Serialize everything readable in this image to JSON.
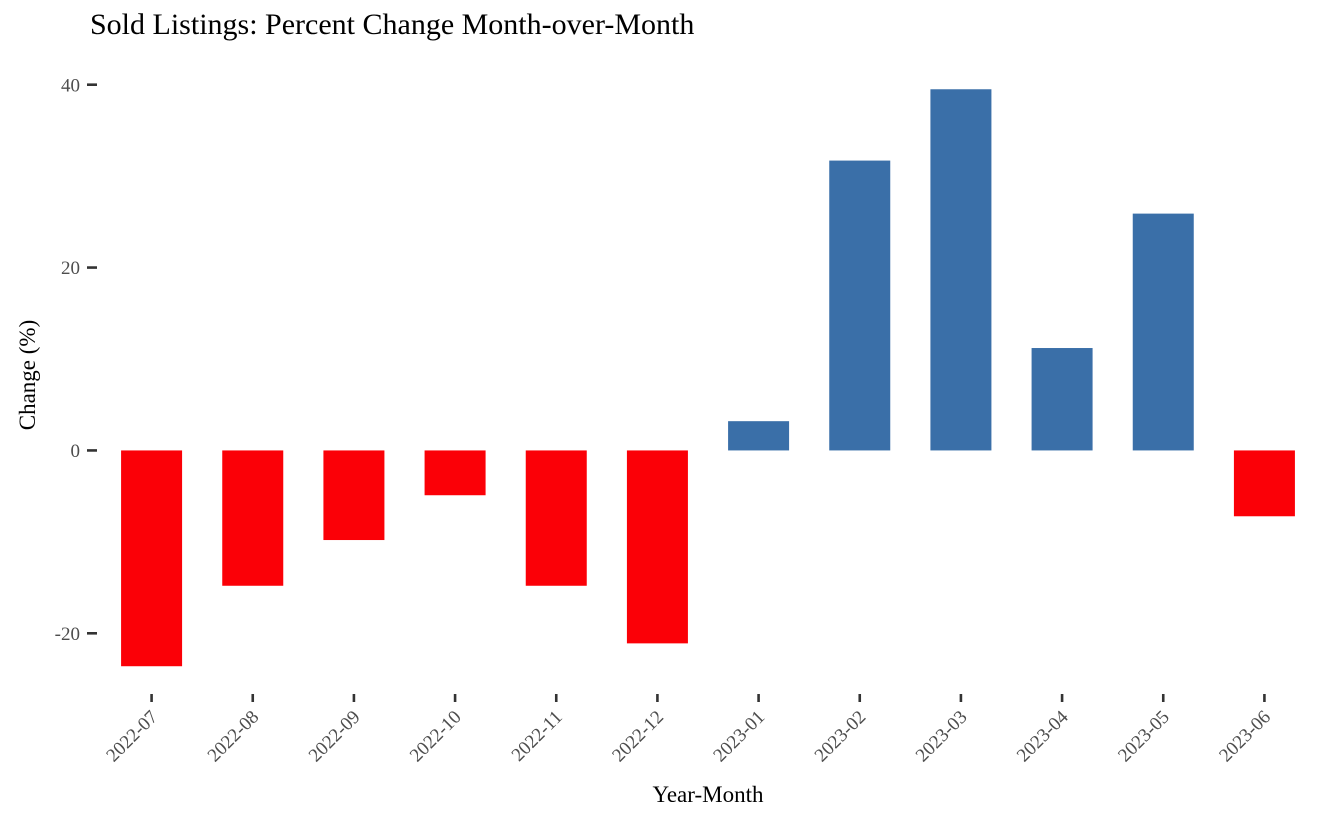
{
  "title": "Sold Listings: Percent Change Month-over-Month",
  "chart_data": {
    "type": "bar",
    "title": "Sold Listings: Percent Change Month-over-Month",
    "xlabel": "Year-Month",
    "ylabel": "Change (%)",
    "categories": [
      "2022-07",
      "2022-08",
      "2022-09",
      "2022-10",
      "2022-11",
      "2022-12",
      "2023-01",
      "2023-02",
      "2023-03",
      "2023-04",
      "2023-05",
      "2023-06"
    ],
    "values": [
      -23.6,
      -14.8,
      -9.8,
      -4.9,
      -14.8,
      -21.1,
      3.2,
      31.7,
      39.5,
      11.2,
      25.9,
      -7.2
    ],
    "yticks": [
      -20,
      0,
      20,
      40
    ],
    "ylim": [
      -26.2,
      42.7
    ],
    "grid": false,
    "legend": "none",
    "background": "#FFFFFF",
    "colors": {
      "positive_bar": "#3A6FA8",
      "negative_bar": "#FB0007",
      "tick_mark": "#333333",
      "tick_label": "#4D4D4D",
      "title_text": "#000000"
    }
  }
}
